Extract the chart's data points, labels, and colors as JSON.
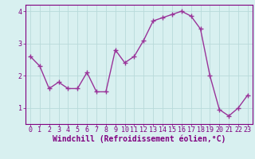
{
  "x": [
    0,
    1,
    2,
    3,
    4,
    5,
    6,
    7,
    8,
    9,
    10,
    11,
    12,
    13,
    14,
    15,
    16,
    17,
    18,
    19,
    20,
    21,
    22,
    23
  ],
  "y": [
    2.6,
    2.3,
    1.6,
    1.8,
    1.6,
    1.6,
    2.1,
    1.5,
    1.5,
    2.8,
    2.4,
    2.6,
    3.1,
    3.7,
    3.8,
    3.9,
    4.0,
    3.85,
    3.45,
    2.0,
    0.95,
    0.75,
    1.0,
    1.4
  ],
  "line_color": "#993399",
  "marker": "+",
  "markersize": 4,
  "linewidth": 1.0,
  "xlabel": "Windchill (Refroidissement éolien,°C)",
  "xlabel_fontsize": 7,
  "xlim": [
    -0.5,
    23.5
  ],
  "ylim": [
    0.5,
    4.2
  ],
  "yticks": [
    1,
    2,
    3,
    4
  ],
  "xticks": [
    0,
    1,
    2,
    3,
    4,
    5,
    6,
    7,
    8,
    9,
    10,
    11,
    12,
    13,
    14,
    15,
    16,
    17,
    18,
    19,
    20,
    21,
    22,
    23
  ],
  "background_color": "#d8f0f0",
  "grid_color": "#b8dada",
  "line_purple": "#800080",
  "tick_fontsize": 6,
  "figsize": [
    3.2,
    2.0
  ],
  "dpi": 100
}
